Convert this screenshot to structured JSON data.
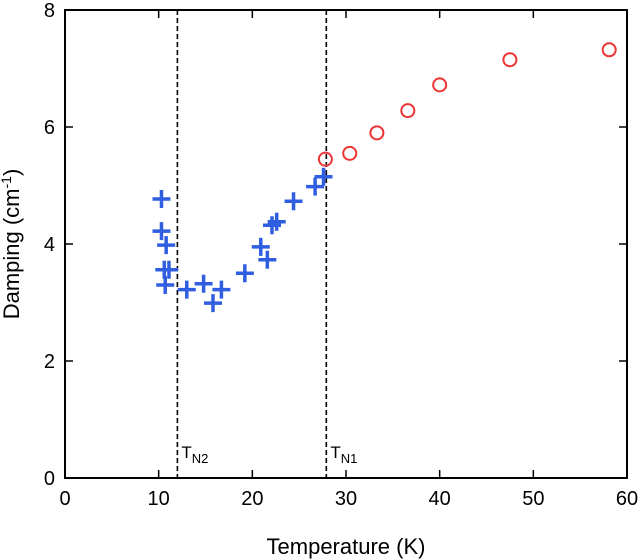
{
  "chart_data": {
    "type": "scatter",
    "xlabel": "Temperature (K)",
    "ylabel_main": "Damping (cm",
    "ylabel_sup": "-1",
    "ylabel_close": ")",
    "xlim": [
      0,
      60
    ],
    "ylim": [
      0,
      8
    ],
    "xticks": [
      0,
      10,
      20,
      30,
      40,
      50,
      60
    ],
    "yticks": [
      0,
      2,
      4,
      6,
      8
    ],
    "grid": false,
    "legend": "none",
    "series": [
      {
        "marker": "plus",
        "color": "#2f5fe0",
        "points": [
          [
            10.3,
            4.77
          ],
          [
            10.3,
            4.22
          ],
          [
            10.8,
            3.98
          ],
          [
            10.6,
            3.56
          ],
          [
            11.1,
            3.56
          ],
          [
            10.7,
            3.3
          ],
          [
            13.0,
            3.22
          ],
          [
            14.8,
            3.32
          ],
          [
            15.8,
            2.99
          ],
          [
            16.7,
            3.22
          ],
          [
            19.2,
            3.5
          ],
          [
            20.9,
            3.95
          ],
          [
            21.6,
            3.73
          ],
          [
            22.1,
            4.32
          ],
          [
            22.6,
            4.38
          ],
          [
            24.4,
            4.73
          ],
          [
            26.7,
            4.98
          ],
          [
            27.6,
            5.15
          ]
        ]
      },
      {
        "marker": "circle",
        "color": "#ec3434",
        "points": [
          [
            27.8,
            5.45
          ],
          [
            30.4,
            5.55
          ],
          [
            33.3,
            5.9
          ],
          [
            36.6,
            6.28
          ],
          [
            40.0,
            6.72
          ],
          [
            47.5,
            7.15
          ],
          [
            58.1,
            7.32
          ]
        ]
      }
    ],
    "vlines": [
      {
        "x": 12.0,
        "label_main": "T",
        "label_sub": "N2"
      },
      {
        "x": 27.9,
        "label_main": "T",
        "label_sub": "N1"
      }
    ]
  }
}
